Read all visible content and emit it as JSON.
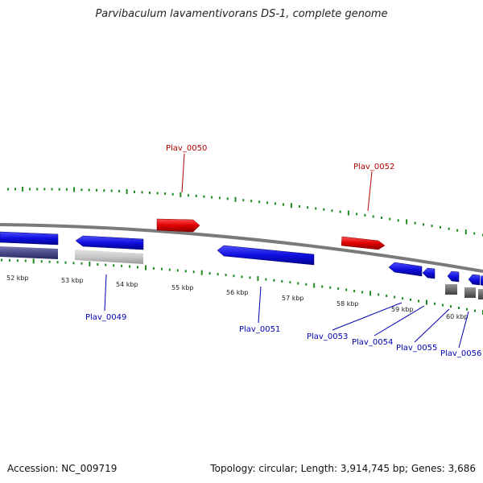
{
  "title": "Parvibaculum lavamentivorans DS-1, complete genome",
  "footer": {
    "accession": "Accession: NC_009719",
    "summary": "Topology: circular; Length: 3,914,745 bp; Genes: 3,686"
  },
  "colors": {
    "forward_gene": "#e01010",
    "reverse_gene": "#1a1ae6",
    "backbone": "#808080",
    "ticks": "#1e8a1e",
    "forward_label": "#b00000",
    "reverse_label": "#0000b0",
    "track_navy": "#4a4a8a",
    "track_light": "#c8c8c8",
    "track_dark": "#707070"
  },
  "scale_labels": [
    "52 kbp",
    "53 kbp",
    "54 kbp",
    "55 kbp",
    "56 kbp",
    "57 kbp",
    "58 kbp",
    "59 kbp",
    "60 kbp"
  ],
  "forward_genes": [
    {
      "name": "Plav_0050"
    },
    {
      "name": "Plav_0052"
    }
  ],
  "reverse_genes": [
    {
      "name": "Plav_0049"
    },
    {
      "name": "Plav_0051"
    },
    {
      "name": "Plav_0053"
    },
    {
      "name": "Plav_0054"
    },
    {
      "name": "Plav_0055"
    },
    {
      "name": "Plav_0056"
    }
  ]
}
